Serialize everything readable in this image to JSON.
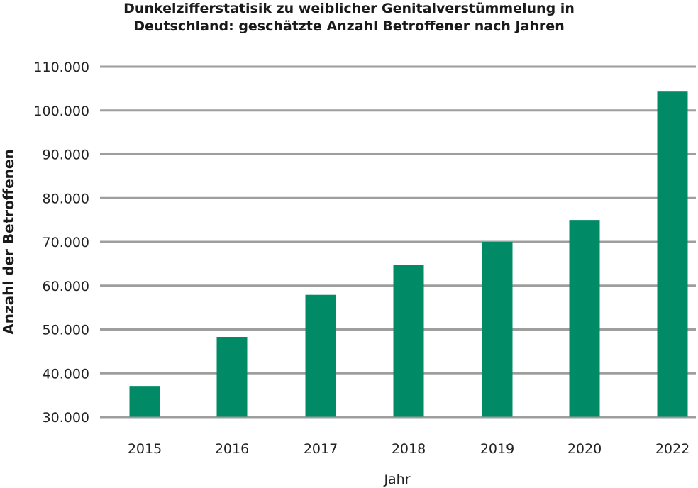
{
  "chart_data": {
    "type": "bar",
    "title_lines": [
      "Dunkelzifferstatisik zu weiblicher Genitalverstümmelung in",
      "Deutschland: geschätzte Anzahl Betroffener nach Jahren"
    ],
    "xlabel": "Jahr",
    "ylabel": "Anzahl der Betroffenen",
    "categories": [
      "2015",
      "2016",
      "2017",
      "2018",
      "2019",
      "2020",
      "2022"
    ],
    "values": [
      37100,
      48300,
      57900,
      64800,
      70000,
      75000,
      104300
    ],
    "ylim": [
      30000,
      110000
    ],
    "yticks": [
      30000,
      40000,
      50000,
      60000,
      70000,
      80000,
      90000,
      100000,
      110000
    ],
    "ytick_labels": [
      "30.000",
      "40.000",
      "50.000",
      "60.000",
      "70.000",
      "80.000",
      "90.000",
      "100.000",
      "110.000"
    ],
    "grid": true,
    "colors": {
      "bar": "#008B66",
      "grid": "#9e9e9e"
    }
  }
}
